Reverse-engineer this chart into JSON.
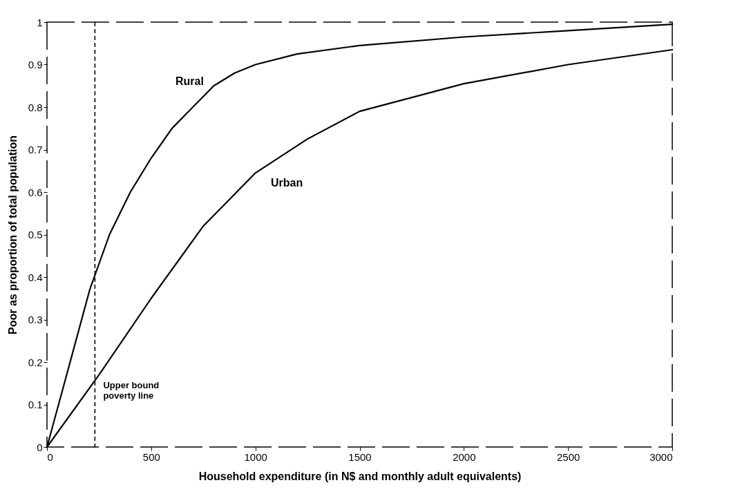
{
  "chart_data": {
    "type": "line",
    "xlabel": "Household expenditure (in N$ and monthly adult equivalents)",
    "ylabel": "Poor as proportion of total population",
    "series": [
      {
        "name": "Rural",
        "color": "#000000",
        "x": [
          0,
          100,
          205,
          300,
          400,
          500,
          600,
          700,
          800,
          900,
          1000,
          1200,
          1500,
          2000,
          2500,
          3000
        ],
        "values": [
          0,
          0.18,
          0.37,
          0.5,
          0.6,
          0.68,
          0.75,
          0.8,
          0.85,
          0.88,
          0.9,
          0.925,
          0.945,
          0.965,
          0.98,
          0.995
        ]
      },
      {
        "name": "Urban",
        "color": "#000000",
        "x": [
          0,
          250,
          500,
          750,
          1000,
          1250,
          1500,
          2000,
          2500,
          3000
        ],
        "values": [
          0,
          0.17,
          0.35,
          0.52,
          0.645,
          0.725,
          0.79,
          0.855,
          0.9,
          0.935
        ]
      }
    ],
    "ref_lines": [
      {
        "axis": "x",
        "value": 230,
        "label": "Upper bound\npoverty line",
        "line_style": "dashed"
      }
    ],
    "xlim": [
      0,
      3000
    ],
    "ylim": [
      0,
      1
    ],
    "xticks": [
      0,
      500,
      1000,
      1500,
      2000,
      2500,
      3000
    ],
    "yticks": [
      0,
      0.1,
      0.2,
      0.3,
      0.4,
      0.5,
      0.6,
      0.7,
      0.8,
      0.9,
      1
    ],
    "grid": false,
    "marker": "none",
    "line_style": "solid"
  }
}
